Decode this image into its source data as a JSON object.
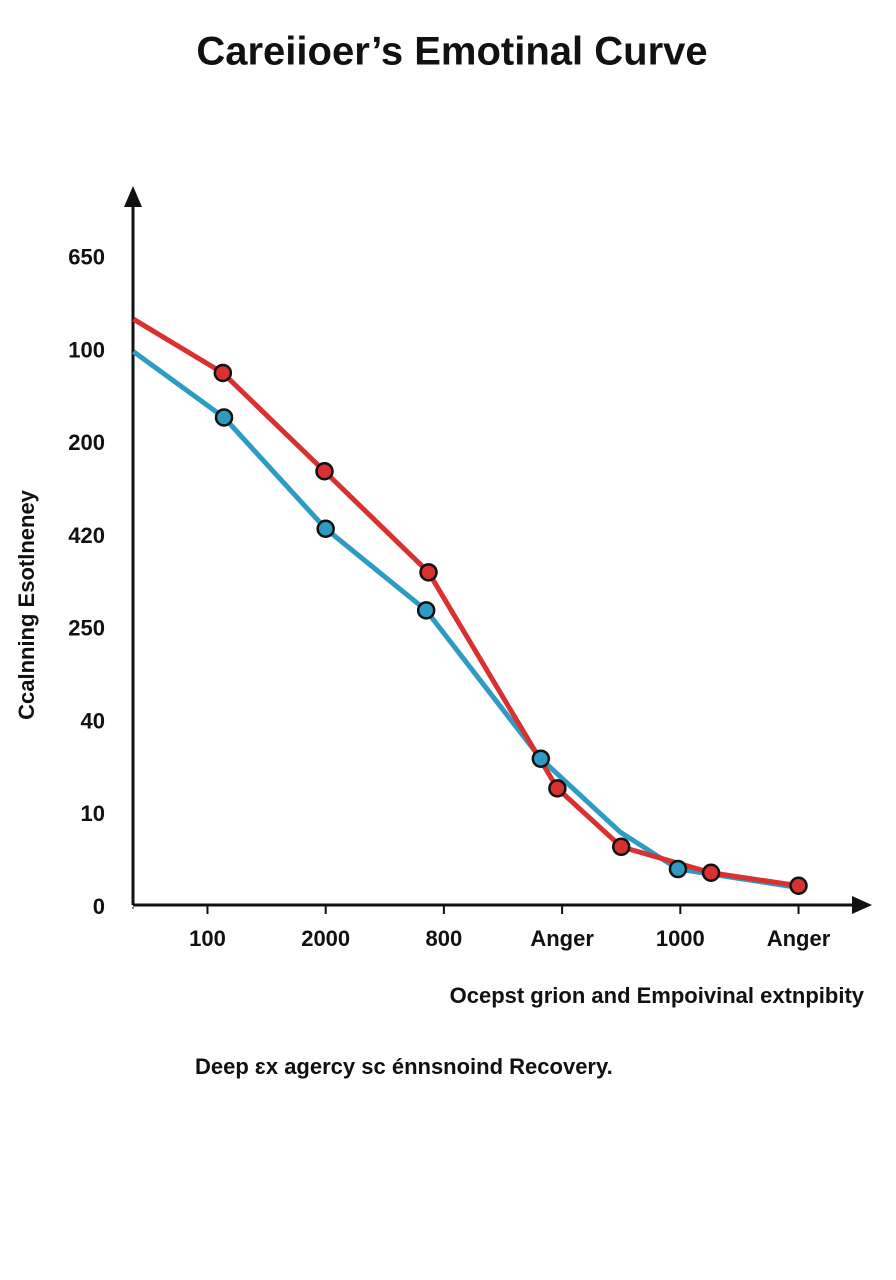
{
  "chart_data": {
    "type": "line",
    "title": "Careiioer’s Emotinal Curve",
    "y_label": "Ccalnning Esotlneney",
    "x_label": "Ocepst grion and Empoivinal extnpibity",
    "caption": "Deep ɛx agercy sc énnsnoind Recovery.",
    "xlim": [
      0.37,
      6.52
    ],
    "xticks": [
      {
        "value": 1,
        "label": "100"
      },
      {
        "value": 2,
        "label": "2000"
      },
      {
        "value": 3,
        "label": "800"
      },
      {
        "value": 4,
        "label": "Anger"
      },
      {
        "value": 5,
        "label": "1000"
      },
      {
        "value": 6,
        "label": "Anger"
      }
    ],
    "ylim": [
      0,
      7.7
    ],
    "yticks": [
      0,
      {
        "value": 1,
        "label": "10"
      },
      {
        "value": 2,
        "label": "40"
      },
      {
        "value": 3,
        "label": "250"
      },
      {
        "value": 4,
        "label": "420"
      },
      {
        "value": 5,
        "label": "200"
      },
      {
        "value": 6,
        "label": "100"
      },
      {
        "value": 7,
        "label": "650"
      }
    ],
    "grid": false,
    "series": [
      {
        "name": "Blue curve",
        "color": "#2e9bc4",
        "x": [
          0.374,
          1.14,
          2.0,
          2.85,
          3.82,
          4.49,
          4.98,
          6.0
        ],
        "values": [
          6.0,
          5.29,
          4.09,
          3.21,
          1.61,
          0.82,
          0.42,
          0.22
        ],
        "markers": [
          false,
          true,
          true,
          true,
          true,
          false,
          true,
          false
        ]
      },
      {
        "name": "Red curve",
        "color": "#d93030",
        "x": [
          0.374,
          1.13,
          1.99,
          2.87,
          3.96,
          4.5,
          5.26,
          6.0
        ],
        "values": [
          6.35,
          5.77,
          4.71,
          3.62,
          1.29,
          0.66,
          0.38,
          0.24
        ],
        "markers": [
          false,
          true,
          true,
          true,
          true,
          true,
          true,
          true
        ]
      }
    ]
  }
}
